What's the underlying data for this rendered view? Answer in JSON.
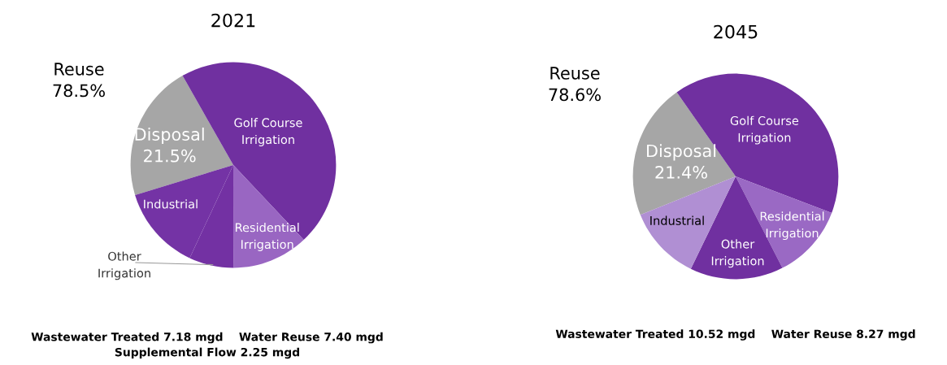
{
  "chart_data": [
    {
      "type": "pie",
      "title": "2021",
      "categories": [
        "Disposal",
        "Golf Course\nIrrigation",
        "Residential\nIrrigation",
        "Other\nIrrigation",
        "Industrial"
      ],
      "values": [
        21.5,
        46.2,
        12,
        7,
        13.3
      ],
      "colors": [
        "#a6a6a6",
        "#7030a0",
        "#9966c2",
        "#7331a3",
        "#7433a5"
      ],
      "value_labels": [
        "21.5%",
        null,
        null,
        null,
        null
      ],
      "annotations": [
        "Reuse\n78.5%",
        "Wastewater Treated 7.18 mgd    Water Reuse 7.40 mgd\nSupplemental Flow 2.25 mgd"
      ]
    },
    {
      "type": "pie",
      "title": "2045",
      "categories": [
        "Disposal",
        "Golf Course\nIrrigation",
        "Residential\nIrrigation",
        "Other\nIrrigation",
        "Industrial"
      ],
      "values": [
        21.4,
        40.5,
        11.7,
        14.7,
        11.7
      ],
      "colors": [
        "#a6a6a6",
        "#7030a0",
        "#9a69c4",
        "#7030a0",
        "#b08fd3"
      ],
      "value_labels": [
        "21.4%",
        null,
        null,
        null,
        null
      ],
      "annotations": [
        "Reuse\n78.6%",
        "Wastewater Treated 10.52 mgd    Water Reuse 8.27 mgd"
      ]
    }
  ]
}
